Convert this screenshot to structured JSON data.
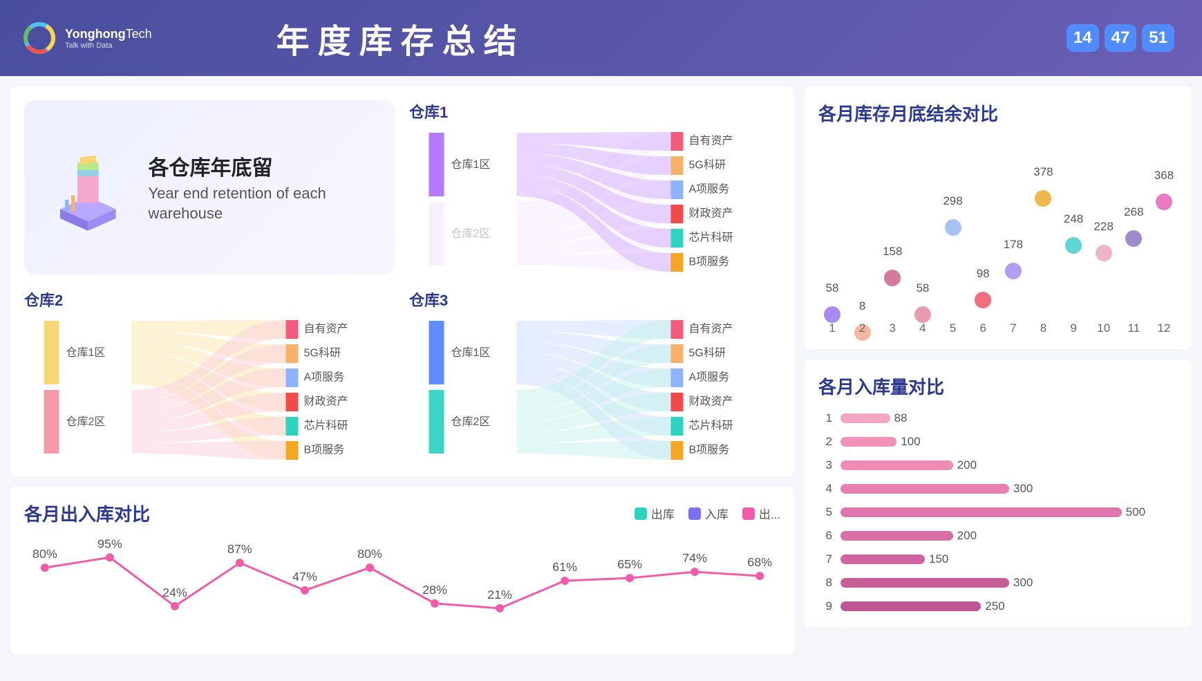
{
  "header": {
    "brand_bold": "Yonghong",
    "brand_light": "Tech",
    "tagline": "Talk with Data",
    "title": "年度库存总结",
    "clock": [
      "14",
      "47",
      "51"
    ]
  },
  "summary": {
    "zh": "各仓库年底留",
    "en": "Year end retention of each warehouse"
  },
  "categories": [
    {
      "label": "自有资产",
      "color": "#f25b7a"
    },
    {
      "label": "5G科研",
      "color": "#f7b267"
    },
    {
      "label": "A项服务",
      "color": "#8fb4ff"
    },
    {
      "label": "财政资产",
      "color": "#f04a4a"
    },
    {
      "label": "芯片科研",
      "color": "#2dd4bf"
    },
    {
      "label": "B项服务",
      "color": "#f5a623"
    }
  ],
  "sankey1": {
    "title": "仓库1",
    "zones": [
      {
        "label": "仓库1区",
        "color": "#b57bff",
        "faded": false
      },
      {
        "label": "仓库2区",
        "color": "#e9d8ff",
        "faded": true
      }
    ],
    "flow_color": "#d7b3ff"
  },
  "sankey2": {
    "title": "仓库2",
    "zones": [
      {
        "label": "仓库1区",
        "color": "#f7d774",
        "faded": false
      },
      {
        "label": "仓库2区",
        "color": "#f29aa8",
        "faded": false
      }
    ],
    "flow_color_top": "#fce7b0",
    "flow_color_bot": "#fbd4dc"
  },
  "sankey3": {
    "title": "仓库3",
    "zones": [
      {
        "label": "仓库1区",
        "color": "#5f8dff",
        "faded": false
      },
      {
        "label": "仓库2区",
        "color": "#3dd6c4",
        "faded": false
      }
    ],
    "flow_color_top": "#cfe0ff",
    "flow_color_bot": "#c9f2ec"
  },
  "scatter": {
    "title": "各月库存月底结余对比",
    "points": [
      {
        "m": 1,
        "v": 58,
        "color": "#a98bf0"
      },
      {
        "m": 2,
        "v": 8,
        "color": "#f7b8a3"
      },
      {
        "m": 3,
        "v": 158,
        "color": "#d47a9a"
      },
      {
        "m": 4,
        "v": 58,
        "color": "#e89ab0"
      },
      {
        "m": 5,
        "v": 298,
        "color": "#a7c1f2"
      },
      {
        "m": 6,
        "v": 98,
        "color": "#f26d7d"
      },
      {
        "m": 7,
        "v": 178,
        "color": "#b19df2"
      },
      {
        "m": 8,
        "v": 378,
        "color": "#f0b84a"
      },
      {
        "m": 9,
        "v": 248,
        "color": "#5fd6d6"
      },
      {
        "m": 10,
        "v": 228,
        "color": "#edb5c9"
      },
      {
        "m": 11,
        "v": 268,
        "color": "#9c8cc9"
      },
      {
        "m": 12,
        "v": 368,
        "color": "#ea7ac2"
      }
    ],
    "ymax": 420
  },
  "bars": {
    "title": "各月入库量对比",
    "max": 600,
    "rows": [
      {
        "m": 1,
        "v": 88,
        "color": "#f2a6c2"
      },
      {
        "m": 2,
        "v": 100,
        "color": "#f291b7"
      },
      {
        "m": 3,
        "v": 200,
        "color": "#ef8cb5"
      },
      {
        "m": 4,
        "v": 300,
        "color": "#e87fb0"
      },
      {
        "m": 5,
        "v": 500,
        "color": "#df77ac"
      },
      {
        "m": 6,
        "v": 200,
        "color": "#d86fa6"
      },
      {
        "m": 7,
        "v": 150,
        "color": "#d066a0"
      },
      {
        "m": 8,
        "v": 300,
        "color": "#c75e9a"
      },
      {
        "m": 9,
        "v": 250,
        "color": "#be5694"
      }
    ]
  },
  "line": {
    "title": "各月出入库对比",
    "legend": [
      {
        "label": "出库",
        "color": "#2dd4bf"
      },
      {
        "label": "入库",
        "color": "#7c6ff0"
      },
      {
        "label": "出...",
        "color": "#f25baa"
      }
    ],
    "pink": [
      80,
      95,
      24,
      87,
      47,
      80,
      28,
      21,
      61,
      65,
      74,
      68
    ],
    "pink_color": "#f25baa"
  }
}
